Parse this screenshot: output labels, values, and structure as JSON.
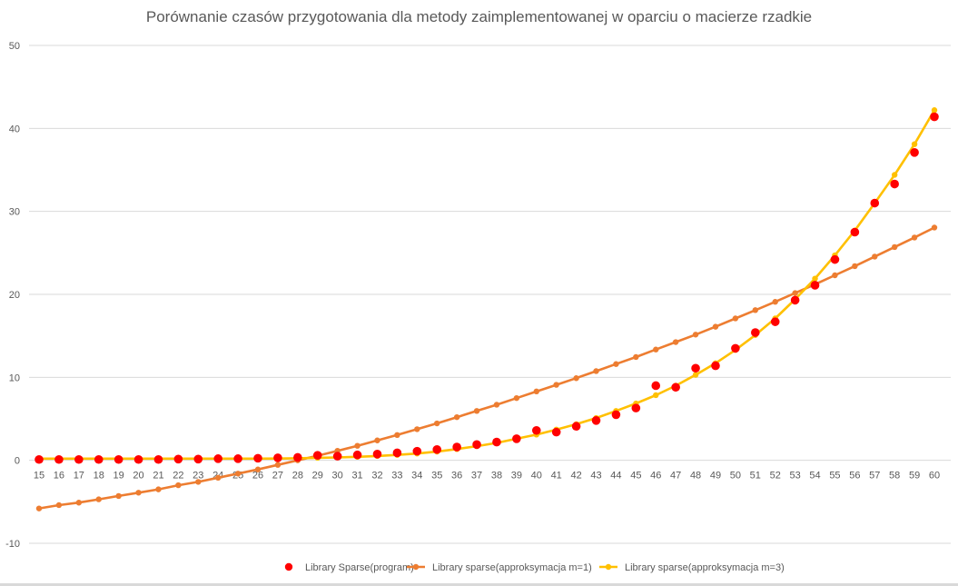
{
  "chart_data": {
    "type": "line",
    "title": "Porównanie czasów przygotowania dla metody zaimplementowanej w oparciu o macierze rzadkie",
    "xlabel": "",
    "ylabel": "",
    "ylim": [
      -10,
      50
    ],
    "yticks": [
      -10,
      0,
      10,
      20,
      30,
      40,
      50
    ],
    "grid": true,
    "legend": "bottom",
    "categories": [
      "15",
      "16",
      "17",
      "18",
      "19",
      "20",
      "21",
      "22",
      "23",
      "24",
      "25",
      "26",
      "27",
      "28",
      "29",
      "30",
      "31",
      "32",
      "33",
      "34",
      "35",
      "36",
      "37",
      "38",
      "39",
      "40",
      "41",
      "42",
      "43",
      "44",
      "45",
      "46",
      "47",
      "48",
      "49",
      "50",
      "51",
      "52",
      "53",
      "54",
      "55",
      "56",
      "57",
      "58",
      "59",
      "60"
    ],
    "series": [
      {
        "name": "Library Sparse(program)",
        "style": "markers",
        "color": "#ff0000",
        "values": [
          0.1,
          0.1,
          0.1,
          0.1,
          0.1,
          0.1,
          0.1,
          0.15,
          0.15,
          0.2,
          0.2,
          0.25,
          0.3,
          0.35,
          0.6,
          0.5,
          0.65,
          0.75,
          0.9,
          1.1,
          1.3,
          1.6,
          1.9,
          2.2,
          2.6,
          3.6,
          3.4,
          4.1,
          4.8,
          5.5,
          6.3,
          9.0,
          8.8,
          11.1,
          11.4,
          13.5,
          15.4,
          16.7,
          19.3,
          21.1,
          24.2,
          27.5,
          31.0,
          33.3,
          37.1,
          41.4
        ]
      },
      {
        "name": "Library sparse(approksymacja m=1)",
        "style": "line-markers",
        "color": "#ed7d31",
        "values": [
          -5.8,
          -5.4,
          -5.1,
          -4.7,
          -4.3,
          -3.9,
          -3.5,
          -3.0,
          -2.6,
          -2.1,
          -1.6,
          -1.1,
          -0.55,
          0.0,
          0.55,
          1.15,
          1.75,
          2.4,
          3.05,
          3.75,
          4.45,
          5.2,
          5.95,
          6.7,
          7.5,
          8.3,
          9.1,
          9.9,
          10.75,
          11.6,
          12.45,
          13.35,
          14.25,
          15.15,
          16.1,
          17.1,
          18.1,
          19.1,
          20.15,
          21.2,
          22.3,
          23.4,
          24.55,
          25.7,
          26.85,
          28.05
        ]
      },
      {
        "name": "Library sparse(approksymacja m=3)",
        "style": "line-markers",
        "color": "#ffc000",
        "values": [
          0.2,
          0.2,
          0.2,
          0.2,
          0.2,
          0.2,
          0.2,
          0.2,
          0.2,
          0.2,
          0.2,
          0.2,
          0.22,
          0.25,
          0.3,
          0.35,
          0.42,
          0.52,
          0.65,
          0.82,
          1.05,
          1.35,
          1.7,
          2.1,
          2.6,
          3.1,
          3.7,
          4.35,
          5.1,
          5.95,
          6.85,
          7.85,
          9.0,
          10.3,
          11.7,
          13.3,
          15.1,
          17.1,
          19.4,
          21.9,
          24.7,
          27.7,
          31.0,
          34.4,
          38.1,
          42.2
        ]
      }
    ]
  },
  "colors": {
    "gridline": "#d9d9d9",
    "text": "#595959"
  }
}
